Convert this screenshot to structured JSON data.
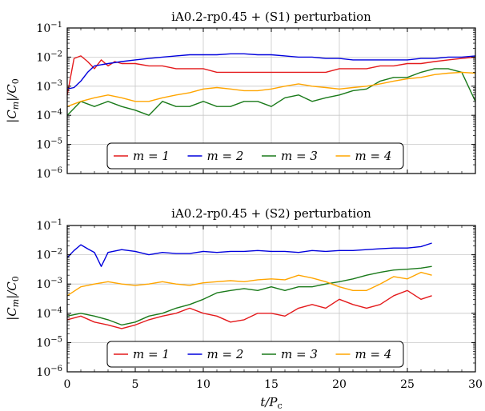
{
  "chart_data": [
    {
      "type": "line",
      "title": "iA0.2-rp0.45 + (S1) perturbation",
      "ylabel": "|C_m|/C_0",
      "xlabel": "",
      "xlim": [
        0,
        30
      ],
      "ylim": [
        1e-06,
        0.1
      ],
      "yscale": "log",
      "xticks": [
        "0",
        "5",
        "10",
        "15",
        "20",
        "25",
        "30"
      ],
      "yticks": [
        "10^-6",
        "10^-5",
        "10^-4",
        "10^-3",
        "10^-2",
        "10^-1"
      ],
      "grid": true,
      "legend": "bottom-left",
      "series": [
        {
          "name": "m = 1",
          "color": "#e41a1c",
          "x": [
            0,
            0.5,
            1,
            1.5,
            2,
            2.5,
            3,
            3.5,
            4,
            5,
            6,
            7,
            8,
            9,
            10,
            11,
            12,
            13,
            14,
            15,
            16,
            17,
            18,
            19,
            20,
            21,
            22,
            23,
            24,
            25,
            26,
            27,
            28,
            29,
            30
          ],
          "values": [
            0.0005,
            0.009,
            0.011,
            0.007,
            0.004,
            0.008,
            0.005,
            0.007,
            0.006,
            0.006,
            0.005,
            0.005,
            0.004,
            0.004,
            0.004,
            0.003,
            0.003,
            0.003,
            0.003,
            0.003,
            0.003,
            0.003,
            0.003,
            0.003,
            0.004,
            0.004,
            0.004,
            0.005,
            0.005,
            0.006,
            0.006,
            0.007,
            0.008,
            0.009,
            0.01
          ]
        },
        {
          "name": "m = 2",
          "color": "#0000dd",
          "x": [
            0,
            0.5,
            1,
            1.5,
            2,
            3,
            4,
            5,
            6,
            7,
            8,
            9,
            10,
            11,
            12,
            13,
            14,
            15,
            16,
            17,
            18,
            19,
            20,
            21,
            22,
            23,
            24,
            25,
            26,
            27,
            28,
            29,
            30
          ],
          "values": [
            0.0008,
            0.0009,
            0.0015,
            0.003,
            0.005,
            0.006,
            0.007,
            0.008,
            0.009,
            0.01,
            0.011,
            0.012,
            0.012,
            0.012,
            0.013,
            0.013,
            0.012,
            0.012,
            0.011,
            0.01,
            0.01,
            0.009,
            0.009,
            0.008,
            0.008,
            0.008,
            0.008,
            0.008,
            0.009,
            0.009,
            0.01,
            0.01,
            0.011
          ]
        },
        {
          "name": "m = 3",
          "color": "#1a7a1a",
          "x": [
            0,
            1,
            2,
            3,
            4,
            5,
            6,
            7,
            8,
            9,
            10,
            11,
            12,
            13,
            14,
            15,
            16,
            17,
            18,
            19,
            20,
            21,
            22,
            23,
            24,
            25,
            26,
            27,
            28,
            29,
            30
          ],
          "values": [
            0.0001,
            0.0003,
            0.0002,
            0.0003,
            0.0002,
            0.00015,
            0.0001,
            0.0003,
            0.0002,
            0.0002,
            0.0003,
            0.0002,
            0.0002,
            0.0003,
            0.0003,
            0.0002,
            0.0004,
            0.0005,
            0.0003,
            0.0004,
            0.0005,
            0.0007,
            0.0008,
            0.0015,
            0.002,
            0.002,
            0.003,
            0.004,
            0.004,
            0.003,
            0.0003
          ]
        },
        {
          "name": "m = 4",
          "color": "#ffa500",
          "x": [
            0,
            1,
            2,
            3,
            4,
            5,
            6,
            7,
            8,
            9,
            10,
            11,
            12,
            13,
            14,
            15,
            16,
            17,
            18,
            19,
            20,
            21,
            22,
            23,
            24,
            25,
            26,
            27,
            28,
            29,
            30
          ],
          "values": [
            0.0002,
            0.0003,
            0.0004,
            0.0005,
            0.0004,
            0.0003,
            0.0003,
            0.0004,
            0.0005,
            0.0006,
            0.0008,
            0.0009,
            0.0008,
            0.0007,
            0.0007,
            0.0008,
            0.001,
            0.0012,
            0.001,
            0.0009,
            0.0008,
            0.0009,
            0.001,
            0.0012,
            0.0015,
            0.0018,
            0.002,
            0.0025,
            0.0028,
            0.003,
            0.0028
          ]
        }
      ]
    },
    {
      "type": "line",
      "title": "iA0.2-rp0.45 + (S2) perturbation",
      "ylabel": "|C_m|/C_0",
      "xlabel": "t/P_c",
      "xlim": [
        0,
        30
      ],
      "ylim": [
        1e-06,
        0.1
      ],
      "yscale": "log",
      "xticks": [
        "0",
        "5",
        "10",
        "15",
        "20",
        "25",
        "30"
      ],
      "yticks": [
        "10^-6",
        "10^-5",
        "10^-4",
        "10^-3",
        "10^-2",
        "10^-1"
      ],
      "grid": true,
      "legend": "bottom-left",
      "series": [
        {
          "name": "m = 1",
          "color": "#e41a1c",
          "x": [
            0,
            1,
            2,
            3,
            4,
            5,
            6,
            7,
            8,
            9,
            10,
            11,
            12,
            13,
            14,
            15,
            16,
            17,
            18,
            19,
            20,
            21,
            22,
            23,
            24,
            25,
            26,
            26.8
          ],
          "values": [
            6e-05,
            8e-05,
            5e-05,
            4e-05,
            3e-05,
            4e-05,
            6e-05,
            8e-05,
            0.0001,
            0.00015,
            0.0001,
            8e-05,
            5e-05,
            6e-05,
            0.0001,
            0.0001,
            8e-05,
            0.00015,
            0.0002,
            0.00015,
            0.0003,
            0.0002,
            0.00015,
            0.0002,
            0.0004,
            0.0006,
            0.0003,
            0.0004
          ]
        },
        {
          "name": "m = 2",
          "color": "#0000dd",
          "x": [
            0,
            0.5,
            1,
            1.5,
            2,
            2.5,
            3,
            4,
            5,
            6,
            7,
            8,
            9,
            10,
            11,
            12,
            13,
            14,
            15,
            16,
            17,
            18,
            19,
            20,
            21,
            22,
            23,
            24,
            25,
            26,
            26.8
          ],
          "values": [
            0.008,
            0.014,
            0.022,
            0.016,
            0.012,
            0.004,
            0.012,
            0.015,
            0.013,
            0.01,
            0.012,
            0.011,
            0.011,
            0.013,
            0.012,
            0.013,
            0.013,
            0.014,
            0.013,
            0.013,
            0.012,
            0.014,
            0.013,
            0.014,
            0.014,
            0.015,
            0.016,
            0.017,
            0.017,
            0.019,
            0.025
          ]
        },
        {
          "name": "m = 3",
          "color": "#1a7a1a",
          "x": [
            0,
            1,
            2,
            3,
            4,
            5,
            6,
            7,
            8,
            9,
            10,
            11,
            12,
            13,
            14,
            15,
            16,
            17,
            18,
            19,
            20,
            21,
            22,
            23,
            24,
            25,
            26,
            26.8
          ],
          "values": [
            8e-05,
            0.0001,
            8e-05,
            6e-05,
            4e-05,
            5e-05,
            8e-05,
            0.0001,
            0.00015,
            0.0002,
            0.0003,
            0.0005,
            0.0006,
            0.0007,
            0.0006,
            0.0008,
            0.0006,
            0.0008,
            0.0008,
            0.001,
            0.0012,
            0.0015,
            0.002,
            0.0025,
            0.003,
            0.0032,
            0.0035,
            0.004
          ]
        },
        {
          "name": "m = 4",
          "color": "#ffa500",
          "x": [
            0,
            1,
            2,
            3,
            4,
            5,
            6,
            7,
            8,
            9,
            10,
            11,
            12,
            13,
            14,
            15,
            16,
            17,
            18,
            19,
            20,
            21,
            22,
            23,
            24,
            25,
            26,
            26.8
          ],
          "values": [
            0.0004,
            0.0008,
            0.001,
            0.0012,
            0.001,
            0.0009,
            0.001,
            0.0012,
            0.001,
            0.0009,
            0.0011,
            0.0012,
            0.0013,
            0.0012,
            0.0014,
            0.0015,
            0.0014,
            0.002,
            0.0016,
            0.0012,
            0.0008,
            0.0006,
            0.0006,
            0.001,
            0.0018,
            0.0015,
            0.0025,
            0.002
          ]
        }
      ]
    }
  ]
}
